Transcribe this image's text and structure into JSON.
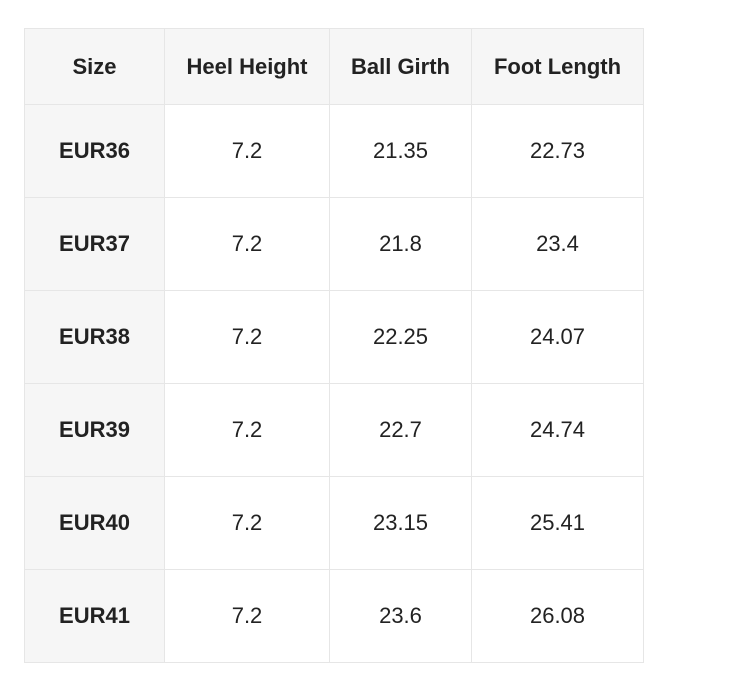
{
  "table": {
    "header": [
      "Size",
      "Heel Height",
      "Ball Girth",
      "Foot Length"
    ],
    "rows": [
      [
        "EUR36",
        "7.2",
        "21.35",
        "22.73"
      ],
      [
        "EUR37",
        "7.2",
        "21.8",
        "23.4"
      ],
      [
        "EUR38",
        "7.2",
        "22.25",
        "24.07"
      ],
      [
        "EUR39",
        "7.2",
        "22.7",
        "24.74"
      ],
      [
        "EUR40",
        "7.2",
        "23.15",
        "25.41"
      ],
      [
        "EUR41",
        "7.2",
        "23.6",
        "26.08"
      ]
    ]
  }
}
